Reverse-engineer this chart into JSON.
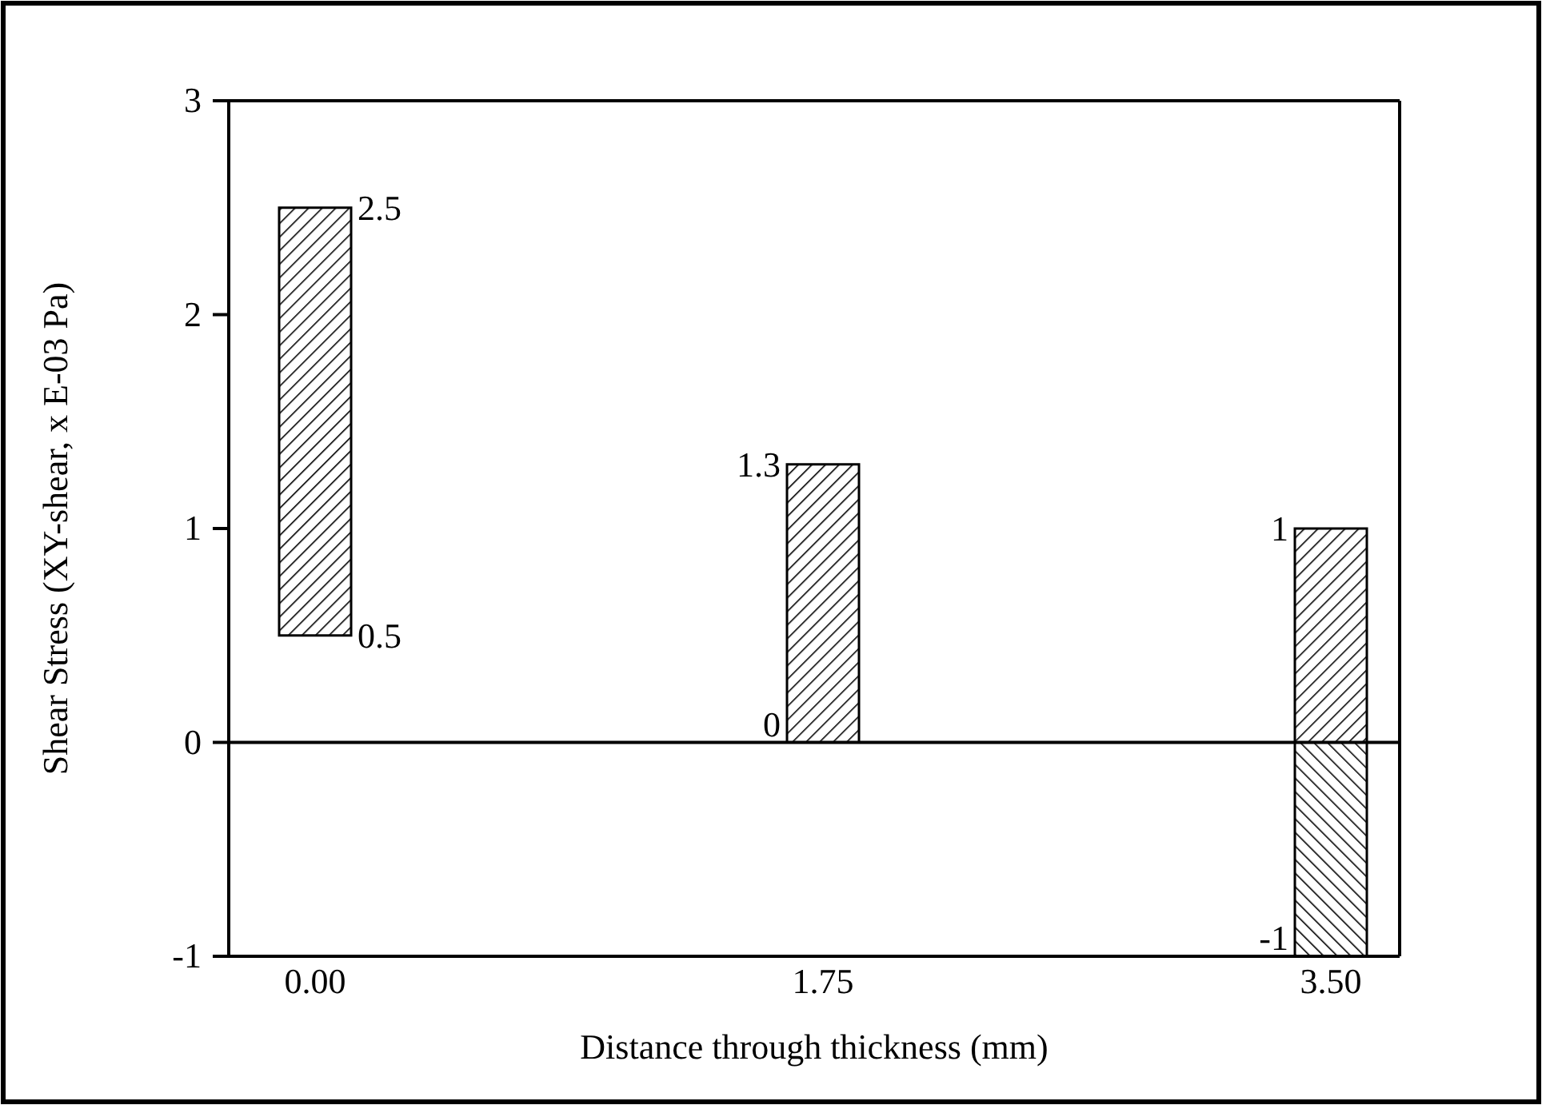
{
  "chart_data": {
    "type": "bar",
    "xlabel": "Distance through thickness (mm)",
    "ylabel": "Shear Stress (XY-shear, x E-03 Pa)",
    "categories": [
      "0.00",
      "1.75",
      "3.50"
    ],
    "series": [
      {
        "color": "#000000",
        "base": [
          0.5,
          0,
          0
        ],
        "values": [
          2,
          1.3,
          1
        ]
      },
      {
        "color": "#000000",
        "base": [
          null,
          null,
          -1
        ],
        "values": [
          null,
          null,
          1
        ]
      }
    ],
    "ylim": [
      -1,
      3
    ],
    "yticks": [
      -1,
      0,
      1,
      2,
      3
    ],
    "grid": false,
    "ref_lines": [
      {
        "axis": "y",
        "value": 0
      }
    ],
    "annotations": [
      {
        "text": "2.5",
        "x": "0.00",
        "y": 2.5
      },
      {
        "text": "0.5",
        "x": "0.00",
        "y": 0.5
      },
      {
        "text": "1.3",
        "x": "1.75",
        "y": 1.3
      },
      {
        "text": "0",
        "x": "1.75",
        "y": 0
      },
      {
        "text": "1",
        "x": "3.50",
        "y": 1
      },
      {
        "text": "-1",
        "x": "3.50",
        "y": -1
      }
    ]
  }
}
